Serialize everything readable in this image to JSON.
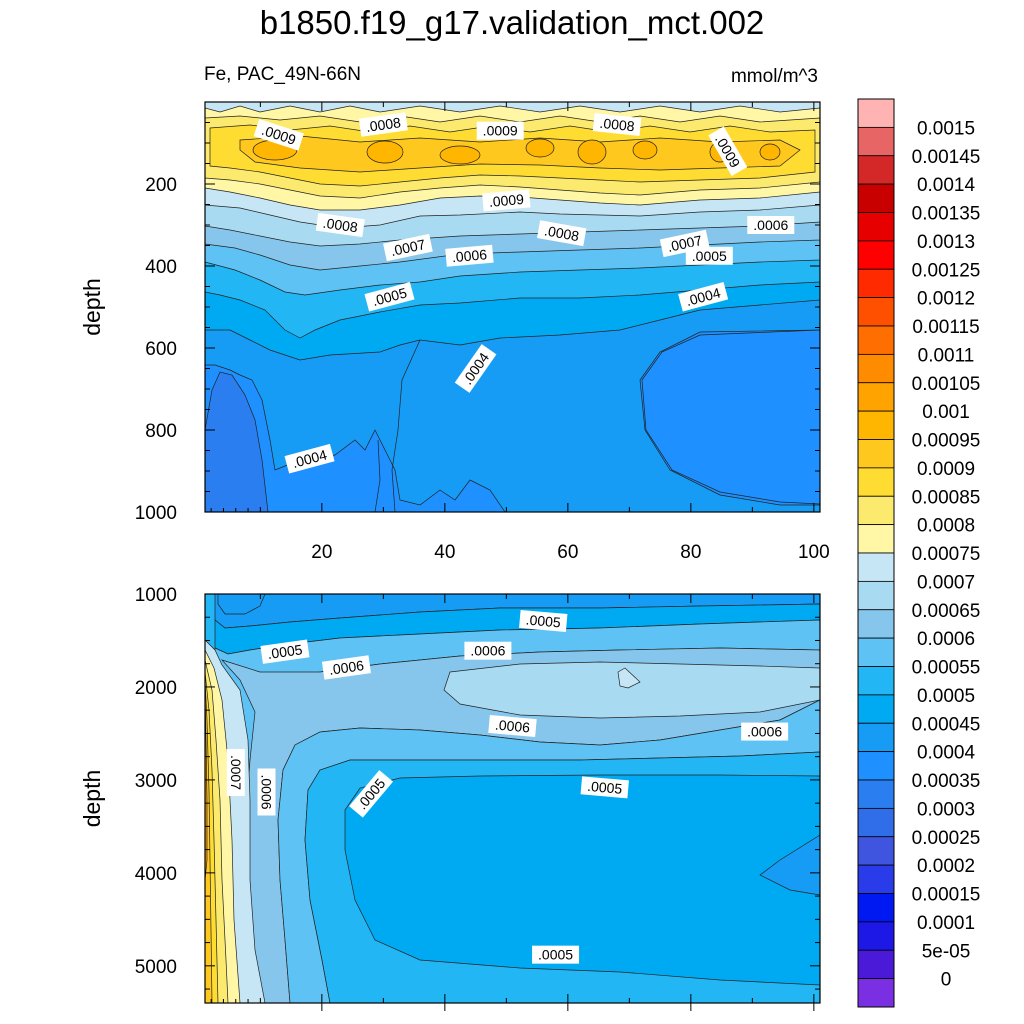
{
  "title": "b1850.f19_g17.validation_mct.002",
  "subtitle_left": "Fe, PAC_49N-66N",
  "subtitle_right": "mmol/m^3",
  "chart_data": [
    {
      "type": "contour",
      "panel": "upper",
      "xlabel": "",
      "ylabel": "depth",
      "xlim": [
        1,
        101
      ],
      "ylim": [
        1000,
        0
      ],
      "xticks": [
        20,
        40,
        60,
        80,
        100
      ],
      "xtick_labels": [
        "20",
        "40",
        "60",
        "80",
        "100"
      ],
      "yticks": [
        200,
        400,
        600,
        800,
        1000
      ],
      "ytick_labels": [
        "200",
        "400",
        "600",
        "800",
        "1000"
      ],
      "contour_labels": [
        {
          "text": ".0009",
          "x": 13,
          "y": 80,
          "angle": 18
        },
        {
          "text": ".0008",
          "x": 30,
          "y": 55,
          "angle": -8
        },
        {
          "text": ".0009",
          "x": 49,
          "y": 70,
          "angle": 0
        },
        {
          "text": ".0008",
          "x": 68,
          "y": 55,
          "angle": 6
        },
        {
          "text": ".0009",
          "x": 86,
          "y": 120,
          "angle": 60
        },
        {
          "text": ".0009",
          "x": 50,
          "y": 240,
          "angle": -5
        },
        {
          "text": ".0008",
          "x": 23,
          "y": 300,
          "angle": 8
        },
        {
          "text": ".0008",
          "x": 59,
          "y": 320,
          "angle": 10
        },
        {
          "text": ".0007",
          "x": 34,
          "y": 355,
          "angle": -12
        },
        {
          "text": ".0007",
          "x": 79,
          "y": 345,
          "angle": -12
        },
        {
          "text": ".0006",
          "x": 93,
          "y": 300,
          "angle": 0
        },
        {
          "text": ".0006",
          "x": 44,
          "y": 375,
          "angle": -5
        },
        {
          "text": ".0005",
          "x": 83,
          "y": 375,
          "angle": 0
        },
        {
          "text": ".0005",
          "x": 31,
          "y": 475,
          "angle": -15
        },
        {
          "text": ".0004",
          "x": 82,
          "y": 475,
          "angle": -15
        },
        {
          "text": ".0004",
          "x": 45,
          "y": 650,
          "angle": -55
        },
        {
          "text": ".0004",
          "x": 18,
          "y": 870,
          "angle": -15
        }
      ]
    },
    {
      "type": "contour",
      "panel": "lower",
      "xlabel": "",
      "ylabel": "depth",
      "xlim": [
        1,
        101
      ],
      "ylim": [
        5400,
        1000
      ],
      "xticks": [
        20,
        40,
        60,
        80,
        100
      ],
      "xtick_labels": [],
      "yticks": [
        1000,
        2000,
        3000,
        4000,
        5000
      ],
      "ytick_labels": [
        "1000",
        "2000",
        "3000",
        "4000",
        "5000"
      ],
      "contour_labels": [
        {
          "text": ".0005",
          "x": 56,
          "y": 1290,
          "angle": 5
        },
        {
          "text": ".0005",
          "x": 14,
          "y": 1620,
          "angle": -8
        },
        {
          "text": ".0006",
          "x": 24,
          "y": 1790,
          "angle": -8
        },
        {
          "text": ".0006",
          "x": 47,
          "y": 1610,
          "angle": 0
        },
        {
          "text": ".0006",
          "x": 51,
          "y": 2420,
          "angle": 5
        },
        {
          "text": ".0006",
          "x": 92,
          "y": 2480,
          "angle": 0
        },
        {
          "text": ".0007",
          "x": 6,
          "y": 2920,
          "angle": 90
        },
        {
          "text": ".0006",
          "x": 11,
          "y": 3130,
          "angle": 90
        },
        {
          "text": ".0005",
          "x": 28,
          "y": 3150,
          "angle": -50
        },
        {
          "text": ".0005",
          "x": 66,
          "y": 3080,
          "angle": 5
        },
        {
          "text": ".0005",
          "x": 58,
          "y": 4880,
          "angle": 0
        }
      ]
    }
  ],
  "colorbar": {
    "labels": [
      "0.0015",
      "0.00145",
      "0.0014",
      "0.00135",
      "0.0013",
      "0.00125",
      "0.0012",
      "0.00115",
      "0.0011",
      "0.00105",
      "0.001",
      "0.00095",
      "0.0009",
      "0.00085",
      "0.0008",
      "0.00075",
      "0.0007",
      "0.00065",
      "0.0006",
      "0.00055",
      "0.0005",
      "0.00045",
      "0.0004",
      "0.00035",
      "0.0003",
      "0.00025",
      "0.0002",
      "0.00015",
      "0.0001",
      "5e-05",
      "0"
    ],
    "colors": [
      "#ffb3b3",
      "#e86565",
      "#d42828",
      "#c80000",
      "#e60000",
      "#ff0000",
      "#ff2a00",
      "#ff5000",
      "#ff6e00",
      "#ff8c00",
      "#ffa300",
      "#ffb600",
      "#ffc81e",
      "#ffdc32",
      "#fbea6e",
      "#fff6a6",
      "#c6e6f6",
      "#a8daf2",
      "#87c6ec",
      "#5ec2f4",
      "#22b6f4",
      "#00aaf2",
      "#169cf5",
      "#1e90ff",
      "#2a7ef0",
      "#2f6ee8",
      "#3f55e0",
      "#2a3cea",
      "#0019f2",
      "#1d18e6",
      "#4b1ad8",
      "#7b2fe3"
    ]
  }
}
